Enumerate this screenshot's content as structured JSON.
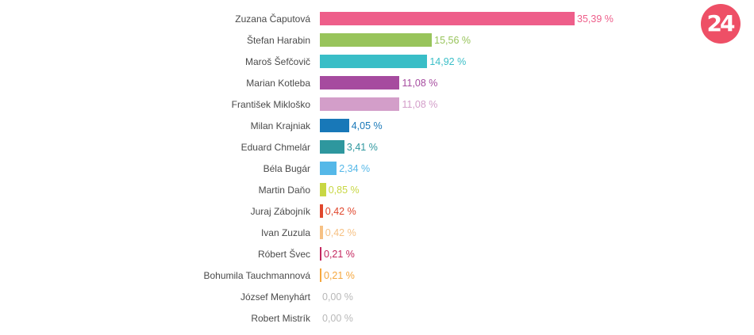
{
  "logo": {
    "text": "24",
    "color": "#ee4f66"
  },
  "chart_data": {
    "type": "bar",
    "orientation": "horizontal",
    "value_format": "{v} %",
    "xlim": [
      0,
      35.39
    ],
    "categories": [
      "Zuzana Čaputová",
      "Štefan Harabin",
      "Maroš Šefčovič",
      "Marian Kotleba",
      "František Mikloško",
      "Milan Krajniak",
      "Eduard Chmelár",
      "Béla Bugár",
      "Martin Daňo",
      "Juraj Zábojník",
      "Ivan Zuzula",
      "Róbert Švec",
      "Bohumila Tauchmannová",
      "József Menyhárt",
      "Robert Mistrík"
    ],
    "values": [
      35.39,
      15.56,
      14.92,
      11.08,
      11.08,
      4.05,
      3.41,
      2.34,
      0.85,
      0.42,
      0.42,
      0.21,
      0.21,
      0.0,
      0.0
    ],
    "value_labels": [
      "35,39 %",
      "15,56 %",
      "14,92 %",
      "11,08 %",
      "11,08 %",
      "4,05 %",
      "3,41 %",
      "2,34 %",
      "0,85 %",
      "0,42 %",
      "0,42 %",
      "0,21 %",
      "0,21 %",
      "0,00 %",
      "0,00 %"
    ],
    "colors": [
      "#ee5e8a",
      "#98c45b",
      "#39bec7",
      "#a64b9f",
      "#d39ec9",
      "#1878b8",
      "#2e979e",
      "#55b8e8",
      "#c8d743",
      "#e0472d",
      "#f6c184",
      "#c4275f",
      "#f5a73d",
      "#b8b8b8",
      "#b8b8b8"
    ],
    "title": "",
    "xlabel": "",
    "ylabel": "",
    "grid": false,
    "legend": "none"
  }
}
